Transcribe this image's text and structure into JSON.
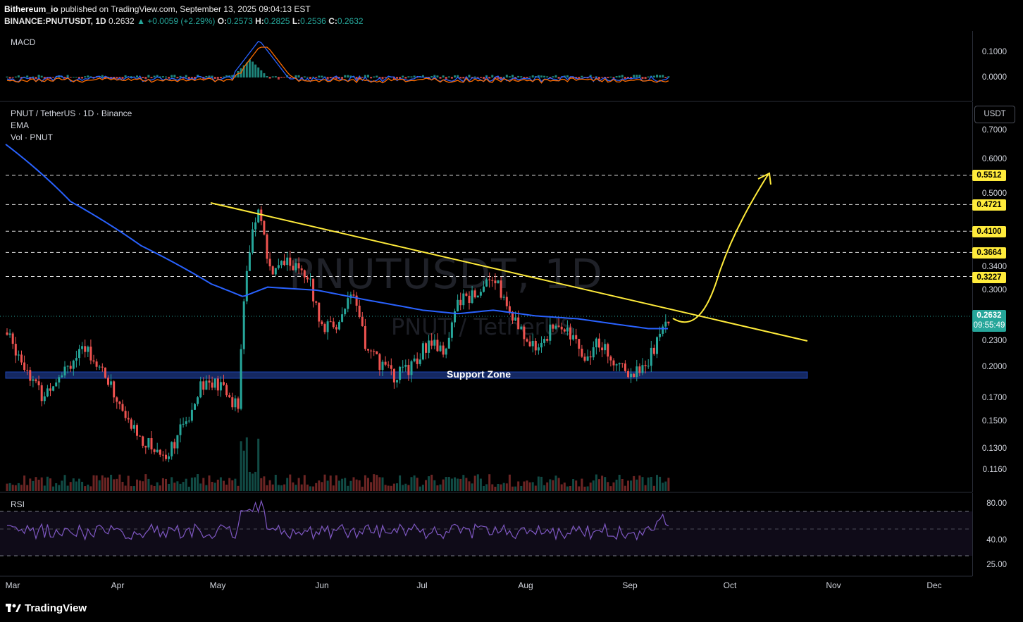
{
  "header": {
    "publisher": "Bithereum_io",
    "published_text": " published on TradingView.com, September 13, 2025 09:04:13 EST",
    "symbol": "BINANCE:PNUTUSDT, 1D",
    "last": "0.2632",
    "change": "▲ +0.0059 (+2.29%)",
    "o_label": "O:",
    "o": "0.2573",
    "h_label": "H:",
    "h": "0.2825",
    "l_label": "L:",
    "l": "0.2536",
    "c_label": "C:",
    "c": "0.2632"
  },
  "panes": {
    "macd_label": "MACD",
    "main_title": "PNUT / TetherUS · 1D · Binance",
    "ema_label": "EMA",
    "vol_label": "Vol · PNUT",
    "rsi_label": "RSI"
  },
  "watermark": {
    "symbol": "PNUTUSDT, 1D",
    "name": "PNUT / TetherUS"
  },
  "annotations": {
    "support_zone": "Support Zone"
  },
  "axis": {
    "currency_button": "USDT",
    "macd_ticks": [
      "0.1000",
      "0.0000"
    ],
    "price_ticks": [
      "0.7000",
      "0.6000",
      "0.5000",
      "0.3400",
      "0.3000",
      "0.2300",
      "0.2000",
      "0.1700",
      "0.1500",
      "0.1300",
      "0.1160"
    ],
    "level_badges": [
      "0.5512",
      "0.4721",
      "0.4100",
      "0.3664",
      "0.3227"
    ],
    "current_price": "0.2632",
    "countdown": "09:55:49",
    "rsi_ticks": [
      "80.00",
      "40.00",
      "25.00"
    ]
  },
  "time_axis": {
    "months": [
      "Mar",
      "Apr",
      "May",
      "Jun",
      "Jul",
      "Aug",
      "Sep",
      "Oct",
      "Nov",
      "Dec"
    ]
  },
  "footer": {
    "brand": "TradingView"
  },
  "colors": {
    "up": "#26a69a",
    "down": "#ef5350",
    "ema": "#2962ff",
    "trendline": "#ffeb3b",
    "macd_line": "#2962ff",
    "signal_line": "#ff6d00",
    "rsi": "#7e57c2",
    "support": "#1e3a8a"
  },
  "chart_data": {
    "type": "candlestick",
    "price_levels": [
      0.5512,
      0.4721,
      0.41,
      0.3664,
      0.3227
    ],
    "support_zone": [
      0.188,
      0.195
    ],
    "last_close": 0.2632
  }
}
